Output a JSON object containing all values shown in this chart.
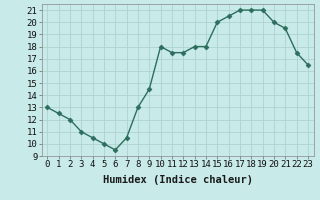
{
  "x": [
    0,
    1,
    2,
    3,
    4,
    5,
    6,
    7,
    8,
    9,
    10,
    11,
    12,
    13,
    14,
    15,
    16,
    17,
    18,
    19,
    20,
    21,
    22,
    23
  ],
  "y": [
    13.0,
    12.5,
    12.0,
    11.0,
    10.5,
    10.0,
    9.5,
    10.5,
    13.0,
    14.5,
    18.0,
    17.5,
    17.5,
    18.0,
    18.0,
    20.0,
    20.5,
    21.0,
    21.0,
    21.0,
    20.0,
    19.5,
    17.5,
    16.5
  ],
  "xlabel": "Humidex (Indice chaleur)",
  "line_color": "#2d6e5e",
  "marker": "D",
  "marker_size": 2.5,
  "bg_color": "#c8eae8",
  "grid_color": "#aed4d0",
  "ylim": [
    9,
    21.5
  ],
  "xlim": [
    -0.5,
    23.5
  ],
  "yticks": [
    9,
    10,
    11,
    12,
    13,
    14,
    15,
    16,
    17,
    18,
    19,
    20,
    21
  ],
  "xticks": [
    0,
    1,
    2,
    3,
    4,
    5,
    6,
    7,
    8,
    9,
    10,
    11,
    12,
    13,
    14,
    15,
    16,
    17,
    18,
    19,
    20,
    21,
    22,
    23
  ],
  "xlabel_fontsize": 7.5,
  "tick_fontsize": 6.5,
  "line_width": 1.0
}
